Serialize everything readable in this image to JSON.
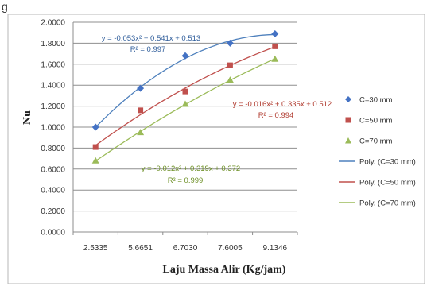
{
  "header_mark": "g",
  "chart_data": {
    "type": "scatter",
    "xlabel": "Laju Massa Alir (Kg/jam)",
    "ylabel": "Nu",
    "categories": [
      "2.5335",
      "5.6651",
      "6.7030",
      "7.6005",
      "9.1346"
    ],
    "y_ticks": [
      "0.0000",
      "0.2000",
      "0.4000",
      "0.6000",
      "0.8000",
      "1.0000",
      "1.2000",
      "1.4000",
      "1.6000",
      "1.8000",
      "2.0000"
    ],
    "ylim": [
      0,
      2
    ],
    "grid": true,
    "legend_position": "right",
    "series": [
      {
        "name": "C=30 mm",
        "marker": "diamond",
        "color": "#4472c4",
        "values": [
          1.0,
          1.37,
          1.68,
          1.8,
          1.89
        ],
        "trend_name": "Poly. (C=30 mm)",
        "trend_color": "#4f81bd",
        "trend_coeffs": [
          -0.053,
          0.541,
          0.513
        ],
        "equation": "y = -0.053x² + 0.541x + 0.513",
        "r2": "R² = 0.997"
      },
      {
        "name": "C=50 mm",
        "marker": "square",
        "color": "#c0504d",
        "values": [
          0.81,
          1.16,
          1.34,
          1.59,
          1.77
        ],
        "trend_name": "Poly. (C=50 mm)",
        "trend_color": "#c0504d",
        "trend_coeffs": [
          -0.016,
          0.335,
          0.512
        ],
        "equation": "y = -0.016x² + 0.335x + 0.512",
        "r2": "R² = 0.994"
      },
      {
        "name": "C=70 mm",
        "marker": "triangle",
        "color": "#9bbb59",
        "values": [
          0.68,
          0.95,
          1.22,
          1.45,
          1.65
        ],
        "trend_name": "Poly. (C=70 mm)",
        "trend_color": "#9bbb59",
        "trend_coeffs": [
          -0.012,
          0.319,
          0.372
        ],
        "equation": "y = -0.012x² + 0.319x + 0.372",
        "r2": "R² = 0.999"
      }
    ]
  }
}
